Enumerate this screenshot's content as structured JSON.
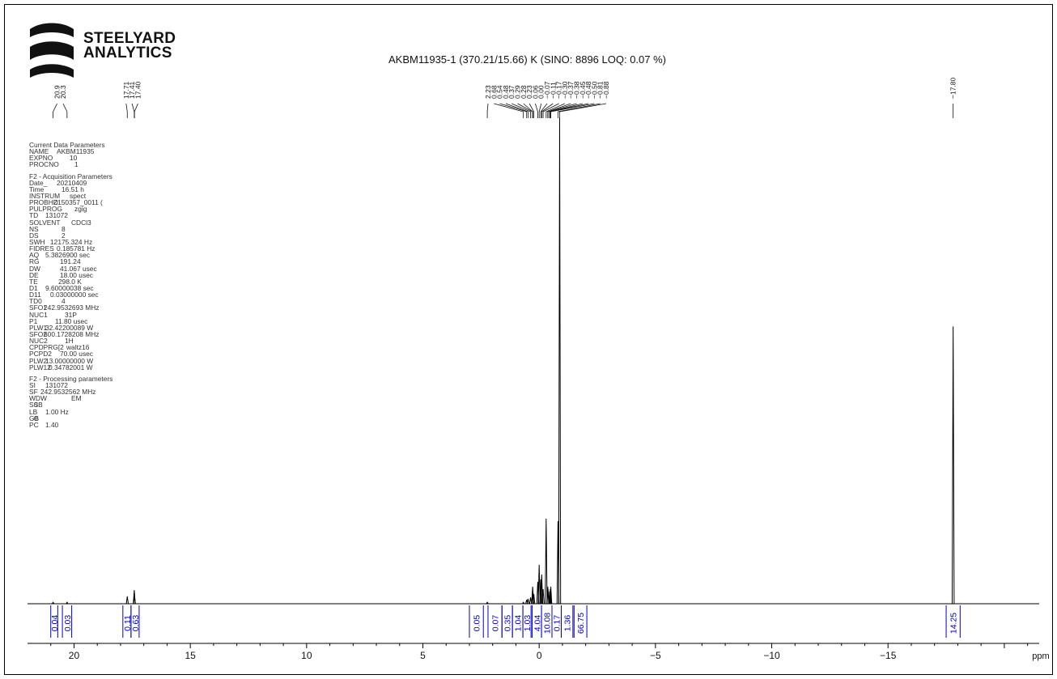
{
  "logo": {
    "line1": "STEELYARD",
    "line2": "ANALYTICS"
  },
  "title": "AKBM11935-1 (370.21/15.66) K  (SINO: 8896    LOQ: 0.07 %)",
  "parameters": {
    "blocks": [
      {
        "heading": "Current Data Parameters",
        "rows": [
          {
            "key": "NAME",
            "value": "AKBM11935",
            "indent": 34
          },
          {
            "key": "EXPNO",
            "value": "10",
            "indent": 50
          },
          {
            "key": "PROCNO",
            "value": "1",
            "indent": 56
          }
        ]
      },
      {
        "heading": "F2 - Acquisition Parameters",
        "rows": [
          {
            "key": "Date_",
            "value": "20210409",
            "indent": 34
          },
          {
            "key": "Time",
            "value": "16.51 h",
            "indent": 40
          },
          {
            "key": "INSTRUM",
            "value": "spect",
            "indent": 50
          },
          {
            "key": "PROBHD",
            "value": "Z150357_0011 (",
            "indent": 30
          },
          {
            "key": "PULPROG",
            "value": "zgig",
            "indent": 56
          },
          {
            "key": "TD",
            "value": "131072",
            "indent": 20
          },
          {
            "key": "SOLVENT",
            "value": "CDCl3",
            "indent": 52
          },
          {
            "key": "NS",
            "value": "8",
            "indent": 40
          },
          {
            "key": "DS",
            "value": "2",
            "indent": 40
          },
          {
            "key": "SWH",
            "value": "12175.324 Hz",
            "indent": 26
          },
          {
            "key": "FIDRES",
            "value": "0.185781 Hz",
            "indent": 34
          },
          {
            "key": "AQ",
            "value": "5.3826900 sec",
            "indent": 20
          },
          {
            "key": "RG",
            "value": "191.24",
            "indent": 38
          },
          {
            "key": "DW",
            "value": "41.067 usec",
            "indent": 38
          },
          {
            "key": "DE",
            "value": "18.00 usec",
            "indent": 38
          },
          {
            "key": "TE",
            "value": "298.0 K",
            "indent": 36
          },
          {
            "key": "D1",
            "value": "9.60000038 sec",
            "indent": 20
          },
          {
            "key": "D11",
            "value": "0.03000000 sec",
            "indent": 26
          },
          {
            "key": "TD0",
            "value": "4",
            "indent": 40
          },
          {
            "key": "SFO1",
            "value": "242.9532693 MHz",
            "indent": 18
          },
          {
            "key": "NUC1",
            "value": "31P",
            "indent": 44
          },
          {
            "key": "P1",
            "value": "11.80 usec",
            "indent": 32
          },
          {
            "key": "PLW1",
            "value": "32.42200089 W",
            "indent": 20
          },
          {
            "key": "SFO2",
            "value": "600.1728208 MHz",
            "indent": 18
          },
          {
            "key": "NUC2",
            "value": "1H",
            "indent": 44
          },
          {
            "key": "CPDPRG[2",
            "value": "waltz16",
            "indent": 46
          },
          {
            "key": "PCPD2",
            "value": "70.00 usec",
            "indent": 38
          },
          {
            "key": "PLW2",
            "value": "13.00000000 W",
            "indent": 20
          },
          {
            "key": "PLW12",
            "value": "0.34782001 W",
            "indent": 24
          }
        ]
      },
      {
        "heading": "F2 - Processing parameters",
        "rows": [
          {
            "key": "SI",
            "value": "131072",
            "indent": 20
          },
          {
            "key": "SF",
            "value": "242.9532562 MHz",
            "indent": 14
          },
          {
            "key": "WDW",
            "value": "EM",
            "indent": 52
          },
          {
            "key": "SSB",
            "value": "0",
            "indent": 6
          },
          {
            "key": "LB",
            "value": "1.00 Hz",
            "indent": 20
          },
          {
            "key": "GB",
            "value": "0",
            "indent": 6
          },
          {
            "key": "PC",
            "value": "1.40",
            "indent": 20
          }
        ]
      }
    ]
  },
  "chart_data": {
    "type": "line",
    "xlabel": "ppm",
    "xlim": [
      22.0,
      -21.5
    ],
    "ticks": [
      20,
      15,
      10,
      5,
      0,
      -5,
      -10,
      -15
    ],
    "tick_labels": [
      "20",
      "15",
      "10",
      "5",
      "0",
      "−5",
      "−10",
      "−15"
    ],
    "ylim": [
      0,
      100
    ],
    "peaks": [
      {
        "ppm": 20.9,
        "height": 0.3
      },
      {
        "ppm": 20.3,
        "height": 0.3
      },
      {
        "ppm": 17.71,
        "height": 1.5
      },
      {
        "ppm": 17.41,
        "height": 2.8
      },
      {
        "ppm": 17.4,
        "height": 1.5
      },
      {
        "ppm": 2.23,
        "height": 0.3
      },
      {
        "ppm": 0.68,
        "height": 0.3
      },
      {
        "ppm": 0.54,
        "height": 0.8
      },
      {
        "ppm": 0.48,
        "height": 1.0
      },
      {
        "ppm": 0.37,
        "height": 1.3
      },
      {
        "ppm": 0.29,
        "height": 1.8
      },
      {
        "ppm": 0.28,
        "height": 3.5
      },
      {
        "ppm": 0.23,
        "height": 2.0
      },
      {
        "ppm": 0.06,
        "height": 4.5
      },
      {
        "ppm": 0.0,
        "height": 8.0
      },
      {
        "ppm": -0.07,
        "height": 5.0
      },
      {
        "ppm": -0.11,
        "height": 6.0
      },
      {
        "ppm": -0.17,
        "height": 3.0
      },
      {
        "ppm": -0.3,
        "height": 17.5
      },
      {
        "ppm": -0.37,
        "height": 3.5
      },
      {
        "ppm": -0.38,
        "height": 3.0
      },
      {
        "ppm": -0.45,
        "height": 2.5
      },
      {
        "ppm": -0.48,
        "height": 3.0
      },
      {
        "ppm": -0.5,
        "height": 3.5
      },
      {
        "ppm": -0.81,
        "height": 17.0
      },
      {
        "ppm": -0.88,
        "height": 100.0
      },
      {
        "ppm": -17.8,
        "height": 57.0
      }
    ],
    "peak_label_groups": [
      {
        "labels": [
          "20.9",
          "20.3"
        ],
        "anchor_ppm": [
          20.9,
          20.3
        ]
      },
      {
        "labels": [
          "17.71",
          "17.41",
          "17.40"
        ],
        "anchor_ppm": [
          17.71,
          17.41,
          17.4
        ]
      },
      {
        "labels": [
          "2.23",
          "0.68",
          "0.54",
          "0.48",
          "0.37",
          "0.29",
          "0.28",
          "0.23",
          "0.06",
          "0.00",
          "−0.07",
          "−0.11",
          "−0.17",
          "−0.30",
          "−0.37",
          "−0.38",
          "−0.45",
          "−0.48",
          "−0.50",
          "−0.81",
          "−0.88"
        ],
        "anchor_ppm": [
          2.23,
          0.68,
          0.54,
          0.48,
          0.37,
          0.29,
          0.28,
          0.23,
          0.06,
          0.0,
          -0.07,
          -0.11,
          -0.17,
          -0.3,
          -0.37,
          -0.38,
          -0.45,
          -0.48,
          -0.5,
          -0.81,
          -0.88
        ]
      },
      {
        "labels": [
          "−17.80"
        ],
        "anchor_ppm": [
          -17.8
        ]
      }
    ],
    "integrals": [
      {
        "value": "0.04",
        "from": 21.0,
        "to": 20.7
      },
      {
        "value": "0.03",
        "from": 20.5,
        "to": 20.1
      },
      {
        "value": "0.11",
        "from": 17.9,
        "to": 17.55
      },
      {
        "value": "0.63",
        "from": 17.55,
        "to": 17.2
      },
      {
        "value": "0.05",
        "from": 3.0,
        "to": 2.4
      },
      {
        "value": "0.07",
        "from": 2.2,
        "to": 1.6
      },
      {
        "value": "0.35",
        "from": 1.6,
        "to": 1.15
      },
      {
        "value": "1.04",
        "from": 1.15,
        "to": 0.7
      },
      {
        "value": "1.03",
        "from": 0.7,
        "to": 0.35
      },
      {
        "value": "4.04",
        "from": 0.3,
        "to": -0.1
      },
      {
        "value": "10.08",
        "from": -0.1,
        "to": -0.55
      },
      {
        "value": "0.17",
        "from": -0.55,
        "to": -0.95
      },
      {
        "value": "1.36",
        "from": -0.95,
        "to": -1.45
      },
      {
        "value": "66.75",
        "from": -1.5,
        "to": -2.05
      },
      {
        "value": "14.25",
        "from": -17.5,
        "to": -18.1
      }
    ],
    "colors": {
      "spectrum": "#000000",
      "integral": "#0000cc",
      "axis": "#000000"
    }
  }
}
